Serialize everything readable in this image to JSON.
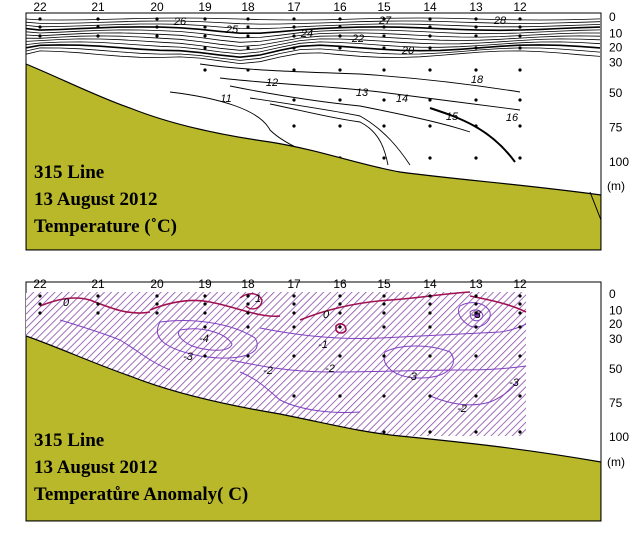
{
  "chart_data": [
    {
      "type": "heatmap",
      "title_lines": [
        "315 Line",
        "13 August 2012",
        "Temperature (˚C)"
      ],
      "stations": [
        "22",
        "21",
        "20",
        "19",
        "18",
        "17",
        "16",
        "15",
        "14",
        "13",
        "12"
      ],
      "depth_ticks": [
        "0",
        "10",
        "20",
        "30",
        "50",
        "75",
        "100"
      ],
      "depth_unit": "(m)",
      "contour_labels": [
        "26",
        "25",
        "24",
        "27",
        "22",
        "20",
        "28",
        "18",
        "16",
        "15",
        "14",
        "13",
        "12",
        "11"
      ],
      "colors": {
        "bottom": "#b8b82a",
        "contour": "#000000"
      }
    },
    {
      "type": "heatmap",
      "title_lines": [
        "315 Line",
        "13 August 2012",
        "Temperatůre Anomaly( C)"
      ],
      "stations": [
        "22",
        "21",
        "20",
        "19",
        "18",
        "17",
        "16",
        "15",
        "14",
        "13",
        "12"
      ],
      "depth_ticks": [
        "0",
        "10",
        "20",
        "30",
        "50",
        "75",
        "100"
      ],
      "depth_unit": "(m)",
      "contour_labels": [
        "0",
        "-4",
        "-3",
        "1",
        "0",
        "-1",
        "-2",
        "-2",
        "-3",
        "-3",
        "-2",
        "-3"
      ],
      "colors": {
        "bottom": "#b8b82a",
        "negative": "#8040c0",
        "positive": "#a01050",
        "hatch": "#7a3a9a"
      }
    }
  ]
}
